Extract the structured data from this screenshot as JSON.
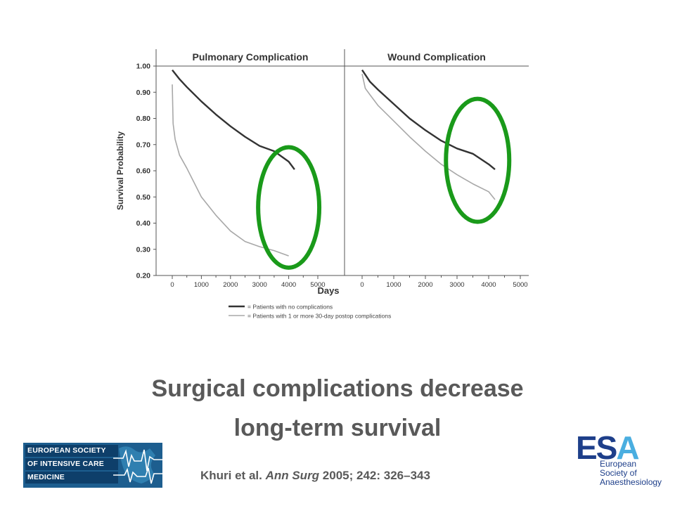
{
  "slide": {
    "title_line1": "Surgical complications decrease",
    "title_line2": "long-term survival",
    "citation_authors": "Khuri et al. ",
    "citation_journal": "Ann Surg",
    "citation_rest": " 2005; 242: 326–343"
  },
  "logos": {
    "esicm_lines": [
      "EUROPEAN SOCIETY",
      "OF INTENSIVE CARE",
      "MEDICINE"
    ],
    "esa_mark_es": "ES",
    "esa_mark_a": "A",
    "esa_sub": [
      "European",
      "Society of",
      "Anaesthesiology"
    ]
  },
  "colors": {
    "highlight": "#1a9a1a",
    "no_complication_line": "#333333",
    "complication_line": "#a8a8a8",
    "esicm_bg": "#1d5e8f",
    "esa_dark": "#1e3f8a",
    "esa_light": "#4aaee0"
  },
  "chart_data": [
    {
      "type": "line",
      "title": "Pulmonary Complication",
      "xlabel": "Days",
      "ylabel": "Survival Probability",
      "xlim": [
        0,
        5000
      ],
      "ylim": [
        0.2,
        1.0
      ],
      "xticks": [
        "0",
        "1000",
        "2000",
        "3000",
        "4000",
        "5000"
      ],
      "yticks": [
        "1.00",
        "0.90",
        "0.80",
        "0.70",
        "0.60",
        "0.50",
        "0.40",
        "0.30",
        "0.20"
      ],
      "highlight_ellipse": {
        "x_center": 4000,
        "y_center": 0.46,
        "x_radius": 1050,
        "y_radius": 0.23
      },
      "series": [
        {
          "name": "= Patients with no complications",
          "x": [
            0,
            250,
            500,
            1000,
            1500,
            2000,
            2500,
            3000,
            3500,
            4000,
            4200
          ],
          "y": [
            0.985,
            0.95,
            0.92,
            0.865,
            0.815,
            0.77,
            0.73,
            0.695,
            0.675,
            0.635,
            0.605
          ]
        },
        {
          "name": "= Patients with 1 or more 30-day postop complications",
          "x": [
            0,
            30,
            100,
            250,
            500,
            1000,
            1500,
            2000,
            2500,
            3000,
            3500,
            4000
          ],
          "y": [
            0.93,
            0.78,
            0.72,
            0.66,
            0.61,
            0.5,
            0.43,
            0.37,
            0.33,
            0.31,
            0.295,
            0.275
          ]
        }
      ]
    },
    {
      "type": "line",
      "title": "Wound Complication",
      "xlabel": "Days",
      "ylabel": "",
      "xlim": [
        0,
        5000
      ],
      "ylim": [
        0.2,
        1.0
      ],
      "xticks": [
        "0",
        "1000",
        "2000",
        "3000",
        "4000",
        "5000"
      ],
      "yticks": [],
      "highlight_ellipse": {
        "x_center": 3650,
        "y_center": 0.64,
        "x_radius": 1000,
        "y_radius": 0.235
      },
      "series": [
        {
          "name": "= Patients with no complications",
          "x": [
            0,
            250,
            500,
            1000,
            1500,
            2000,
            2500,
            3000,
            3500,
            4000,
            4200
          ],
          "y": [
            0.985,
            0.94,
            0.91,
            0.855,
            0.8,
            0.755,
            0.715,
            0.685,
            0.665,
            0.625,
            0.605
          ]
        },
        {
          "name": "= Patients with 1 or more 30-day postop complications",
          "x": [
            0,
            100,
            250,
            500,
            1000,
            1500,
            2000,
            2500,
            3000,
            3500,
            4000,
            4200
          ],
          "y": [
            0.97,
            0.915,
            0.89,
            0.85,
            0.79,
            0.73,
            0.675,
            0.625,
            0.585,
            0.55,
            0.52,
            0.49
          ]
        }
      ]
    }
  ]
}
